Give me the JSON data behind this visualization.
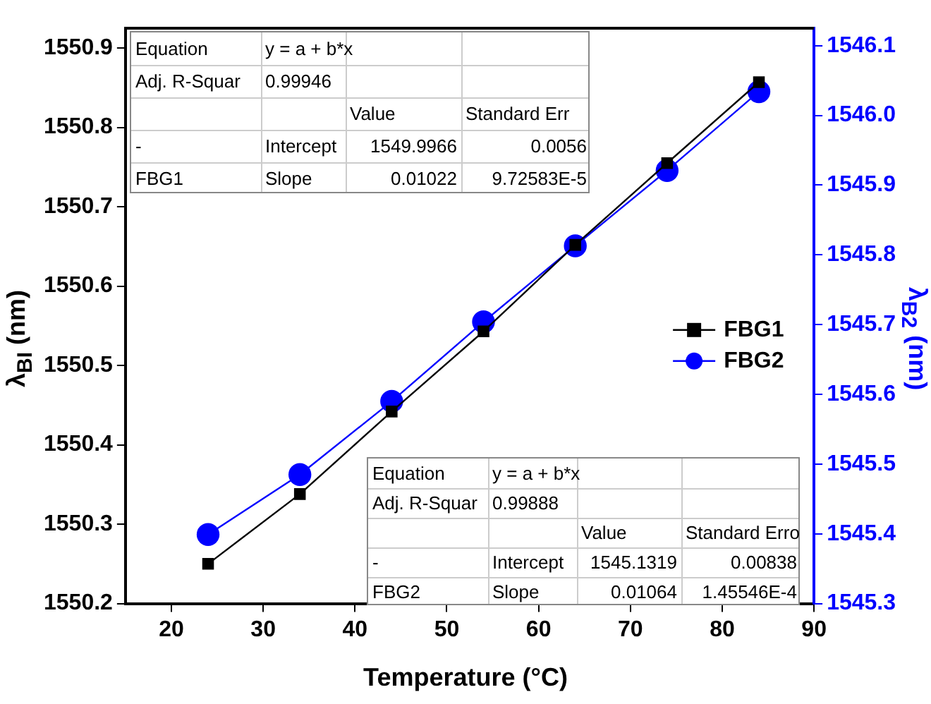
{
  "chart_data": {
    "type": "line",
    "xlabel": "Temperature (°C)",
    "ylabel": "λ$_{BI}$ (nm)",
    "y2label": "λ$_{B2}$ (nm)",
    "x": [
      24,
      34,
      44,
      54,
      64,
      74,
      84
    ],
    "series": [
      {
        "name": "FBG1",
        "color": "#000000",
        "marker": "square",
        "values": [
          1550.25,
          1550.338,
          1550.442,
          1550.543,
          1550.652,
          1550.755,
          1550.857
        ]
      },
      {
        "name": "FBG2",
        "color": "#0000ff",
        "marker": "circle",
        "axis": "y2",
        "values": [
          1545.399,
          1545.485,
          1545.59,
          1545.704,
          1545.813,
          1545.921,
          1546.034
        ]
      }
    ],
    "xlim": [
      15,
      90
    ],
    "xticks": [
      20,
      30,
      40,
      50,
      60,
      70,
      80,
      90
    ],
    "ylim": [
      1550.2,
      1550.925
    ],
    "yticks": [
      1550.2,
      1550.3,
      1550.4,
      1550.5,
      1550.6,
      1550.7,
      1550.8,
      1550.9
    ],
    "y2lim": [
      1545.3,
      1546.125
    ],
    "y2ticks": [
      1545.3,
      1545.4,
      1545.5,
      1545.6,
      1545.7,
      1545.8,
      1545.9,
      {
        "value": 1546,
        "label": "1546.0"
      },
      1546.1
    ],
    "legend": "right",
    "grid": false,
    "line_style": "solid",
    "annotations": [
      "Equation",
      "y = a + b*x",
      "Adj. R-Squar",
      "0.99946",
      "Value",
      "Standard Err",
      "-",
      "Intercept",
      "1549.9966",
      "0.0056",
      "FBG1",
      "Slope",
      "0.01022",
      "9.72583E-5",
      "Equation",
      "y = a + b*x",
      "Adj. R-Squar",
      "0.99888",
      "Value",
      "Standard Erro",
      "-",
      "Intercept",
      "1545.1319",
      "0.00838",
      "FBG2",
      "Slope",
      "0.01064",
      "1.45546E-4"
    ]
  }
}
